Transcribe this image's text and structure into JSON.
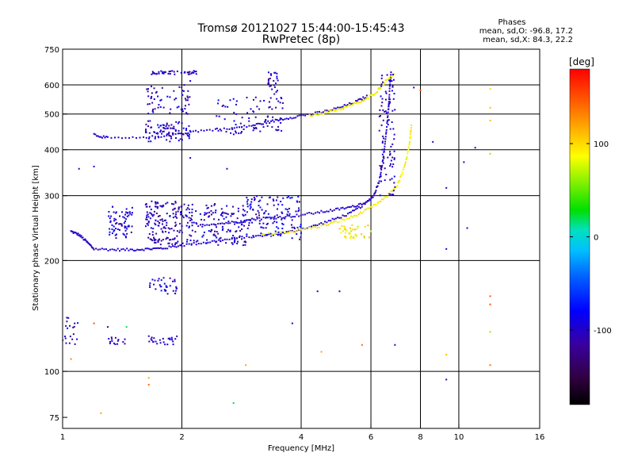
{
  "chart_data": {
    "type": "scatter",
    "title": "Tromsø 20121027 15:44:00-15:45:43",
    "subtitle": "RwPretec (8p)",
    "legend_heading": "Phases",
    "legend_line_o": "mean, sd,O: -96.8, 17.2",
    "legend_line_x": "mean, sd,X: 84.3, 22.2",
    "xlabel": "Frequency [MHz]",
    "ylabel": "Stationary phase Virtual Height [km]",
    "x_scale": "log",
    "y_scale": "log",
    "xlim": [
      1,
      16
    ],
    "ylim": [
      70,
      750
    ],
    "x_ticks": [
      1,
      2,
      4,
      6,
      8,
      10,
      16
    ],
    "y_ticks": [
      75,
      100,
      200,
      300,
      400,
      500,
      600,
      750
    ],
    "x_grid": [
      2,
      4,
      6,
      8,
      10
    ],
    "y_grid": [
      100,
      200,
      300,
      400,
      500,
      600
    ],
    "grid": true,
    "colorbar": {
      "label": "[deg]",
      "range": [
        -180,
        180
      ],
      "ticks": [
        100,
        0,
        -100
      ],
      "placement": "right"
    },
    "traces": [
      {
        "name_ref": "o-F1-base",
        "phase": -100,
        "points": [
          [
            1.05,
            240
          ],
          [
            1.1,
            235
          ],
          [
            1.15,
            225
          ],
          [
            1.2,
            215
          ],
          [
            1.35,
            214
          ],
          [
            1.5,
            214
          ],
          [
            1.65,
            215
          ],
          [
            1.8,
            216
          ],
          [
            2.0,
            220
          ],
          [
            2.3,
            224
          ],
          [
            2.6,
            228
          ],
          [
            3.0,
            232
          ],
          [
            3.4,
            235
          ],
          [
            3.8,
            240
          ],
          [
            4.3,
            248
          ],
          [
            4.8,
            258
          ],
          [
            5.3,
            268
          ],
          [
            5.8,
            285
          ],
          [
            6.1,
            300
          ],
          [
            6.3,
            330
          ],
          [
            6.45,
            380
          ],
          [
            6.55,
            440
          ],
          [
            6.65,
            520
          ],
          [
            6.7,
            600
          ],
          [
            6.75,
            650
          ]
        ]
      },
      {
        "name_ref": "x-F-trace",
        "phase": 90,
        "points": [
          [
            3.2,
            235
          ],
          [
            3.6,
            238
          ],
          [
            4.0,
            242
          ],
          [
            4.5,
            248
          ],
          [
            5.0,
            256
          ],
          [
            5.5,
            265
          ],
          [
            6.0,
            278
          ],
          [
            6.5,
            295
          ],
          [
            7.0,
            320
          ],
          [
            7.3,
            360
          ],
          [
            7.5,
            410
          ],
          [
            7.6,
            470
          ]
        ]
      },
      {
        "name_ref": "o-F2",
        "phase": -100,
        "points": [
          [
            2.2,
            250
          ],
          [
            2.5,
            252
          ],
          [
            2.8,
            255
          ],
          [
            3.1,
            260
          ],
          [
            3.5,
            262
          ],
          [
            3.9,
            265
          ],
          [
            4.4,
            270
          ],
          [
            4.9,
            275
          ],
          [
            5.4,
            280
          ],
          [
            5.9,
            290
          ]
        ]
      },
      {
        "name_ref": "o-2hop",
        "phase": -100,
        "points": [
          [
            1.2,
            440
          ],
          [
            1.3,
            430
          ],
          [
            1.6,
            430
          ],
          [
            1.9,
            440
          ],
          [
            2.2,
            450
          ],
          [
            2.6,
            455
          ],
          [
            3.0,
            465
          ],
          [
            3.3,
            475
          ],
          [
            3.6,
            485
          ],
          [
            4.0,
            495
          ],
          [
            4.5,
            505
          ],
          [
            5.0,
            520
          ],
          [
            5.5,
            540
          ],
          [
            5.9,
            560
          ]
        ]
      },
      {
        "name_ref": "x-2hop",
        "phase": 90,
        "points": [
          [
            4.2,
            495
          ],
          [
            4.6,
            505
          ],
          [
            5.0,
            515
          ],
          [
            5.4,
            530
          ],
          [
            5.8,
            545
          ],
          [
            6.2,
            575
          ],
          [
            6.5,
            610
          ],
          [
            6.9,
            650
          ]
        ]
      }
    ],
    "clusters": [
      {
        "x": [
          1.3,
          1.5
        ],
        "y": [
          230,
          280
        ],
        "phase": -100,
        "n": 70
      },
      {
        "x": [
          1.62,
          2.0
        ],
        "y": [
          220,
          290
        ],
        "phase": -105,
        "n": 150
      },
      {
        "x": [
          2.0,
          2.9
        ],
        "y": [
          220,
          285
        ],
        "phase": -100,
        "n": 160
      },
      {
        "x": [
          2.9,
          4.0
        ],
        "y": [
          228,
          300
        ],
        "phase": -95,
        "n": 120
      },
      {
        "x": [
          1.62,
          2.1
        ],
        "y": [
          420,
          480
        ],
        "phase": -100,
        "n": 80
      },
      {
        "x": [
          1.62,
          2.1
        ],
        "y": [
          500,
          600
        ],
        "phase": -100,
        "n": 60
      },
      {
        "x": [
          2.4,
          3.6
        ],
        "y": [
          440,
          560
        ],
        "phase": -100,
        "n": 80
      },
      {
        "x": [
          3.3,
          3.5
        ],
        "y": [
          560,
          650
        ],
        "phase": -100,
        "n": 25
      },
      {
        "x": [
          1.65,
          2.2
        ],
        "y": [
          640,
          655
        ],
        "phase": -105,
        "n": 40
      },
      {
        "x": [
          1.65,
          1.95
        ],
        "y": [
          162,
          180
        ],
        "phase": -90,
        "n": 35
      },
      {
        "x": [
          1.65,
          1.95
        ],
        "y": [
          118,
          125
        ],
        "phase": -100,
        "n": 25
      },
      {
        "x": [
          1.3,
          1.45
        ],
        "y": [
          118,
          124
        ],
        "phase": -100,
        "n": 15
      },
      {
        "x": [
          1.0,
          1.1
        ],
        "y": [
          118,
          140
        ],
        "phase": -100,
        "n": 20
      },
      {
        "x": [
          6.3,
          6.9
        ],
        "y": [
          300,
          640
        ],
        "phase": -100,
        "n": 90
      },
      {
        "x": [
          5.0,
          6.0
        ],
        "y": [
          230,
          250
        ],
        "phase": 90,
        "n": 40
      }
    ],
    "scattered_points": [
      [
        1.2,
        135,
        150
      ],
      [
        1.3,
        132,
        -120
      ],
      [
        1.45,
        132,
        20
      ],
      [
        1.65,
        92,
        140
      ],
      [
        1.65,
        96,
        120
      ],
      [
        1.25,
        77,
        120
      ],
      [
        1.05,
        108,
        130
      ],
      [
        2.7,
        82,
        20
      ],
      [
        2.9,
        104,
        120
      ],
      [
        3.8,
        135,
        -100
      ],
      [
        4.4,
        165,
        -100
      ],
      [
        4.5,
        113,
        120
      ],
      [
        5.7,
        118,
        140
      ],
      [
        6.9,
        118,
        -100
      ],
      [
        9.3,
        111,
        110
      ],
      [
        9.3,
        95,
        -100
      ],
      [
        9.3,
        215,
        -100
      ],
      [
        9.3,
        315,
        -100
      ],
      [
        10.5,
        245,
        -100
      ],
      [
        11.0,
        405,
        -100
      ],
      [
        10.3,
        370,
        -100
      ],
      [
        8.6,
        420,
        -110
      ],
      [
        12.0,
        160,
        150
      ],
      [
        12.0,
        152,
        150
      ],
      [
        12.0,
        128,
        60
      ],
      [
        12.0,
        104,
        140
      ],
      [
        12.0,
        585,
        100
      ],
      [
        12.0,
        480,
        110
      ],
      [
        12.0,
        520,
        110
      ],
      [
        12.0,
        390,
        60
      ],
      [
        2.1,
        615,
        -100
      ],
      [
        2.1,
        380,
        -100
      ],
      [
        2.6,
        355,
        -100
      ],
      [
        1.2,
        360,
        -100
      ],
      [
        1.1,
        355,
        -100
      ],
      [
        5.0,
        165,
        -100
      ],
      [
        8.0,
        580,
        150
      ],
      [
        7.7,
        590,
        -100
      ]
    ]
  }
}
